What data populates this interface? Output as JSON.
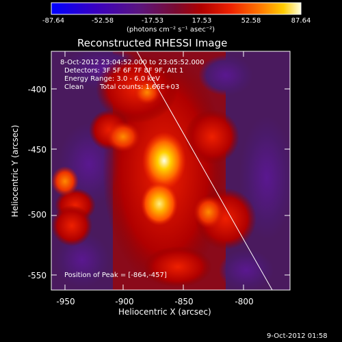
{
  "colorbar": {
    "ticks": [
      "-87.64",
      "-52.58",
      "-17.53",
      "17.53",
      "52.58",
      "87.64"
    ],
    "units": "(photons cm⁻² s⁻¹ asec⁻²)",
    "colors": [
      "#0000ff",
      "#3300cc",
      "#550088",
      "#6a1b7a",
      "#8b0000",
      "#cc1100",
      "#ff3300",
      "#ff8800",
      "#ffcc00",
      "#ffffcc"
    ]
  },
  "image": {
    "title": "Reconstructed RHESSI Image",
    "time_range": "8-Oct-2012 23:04:52.000 to 23:05:52.000",
    "detectors": "Detectors: 3F 5F 6F 7F 8F 9F, Att 1",
    "energy_range": "Energy Range: 3.0 - 6.0 keV",
    "clean_label": "Clean",
    "total_counts": "Total counts: 1.66E+03",
    "peak": "Position of Peak = [-864,-457]"
  },
  "axes": {
    "xlabel": "Heliocentric X (arcsec)",
    "ylabel": "Heliocentric Y (arcsec)",
    "xticks": [
      "-950",
      "-900",
      "-850",
      "-800"
    ],
    "yticks": [
      "-400",
      "-450",
      "-500",
      "-550"
    ]
  },
  "footer": {
    "timestamp": "9-Oct-2012 01:58"
  }
}
